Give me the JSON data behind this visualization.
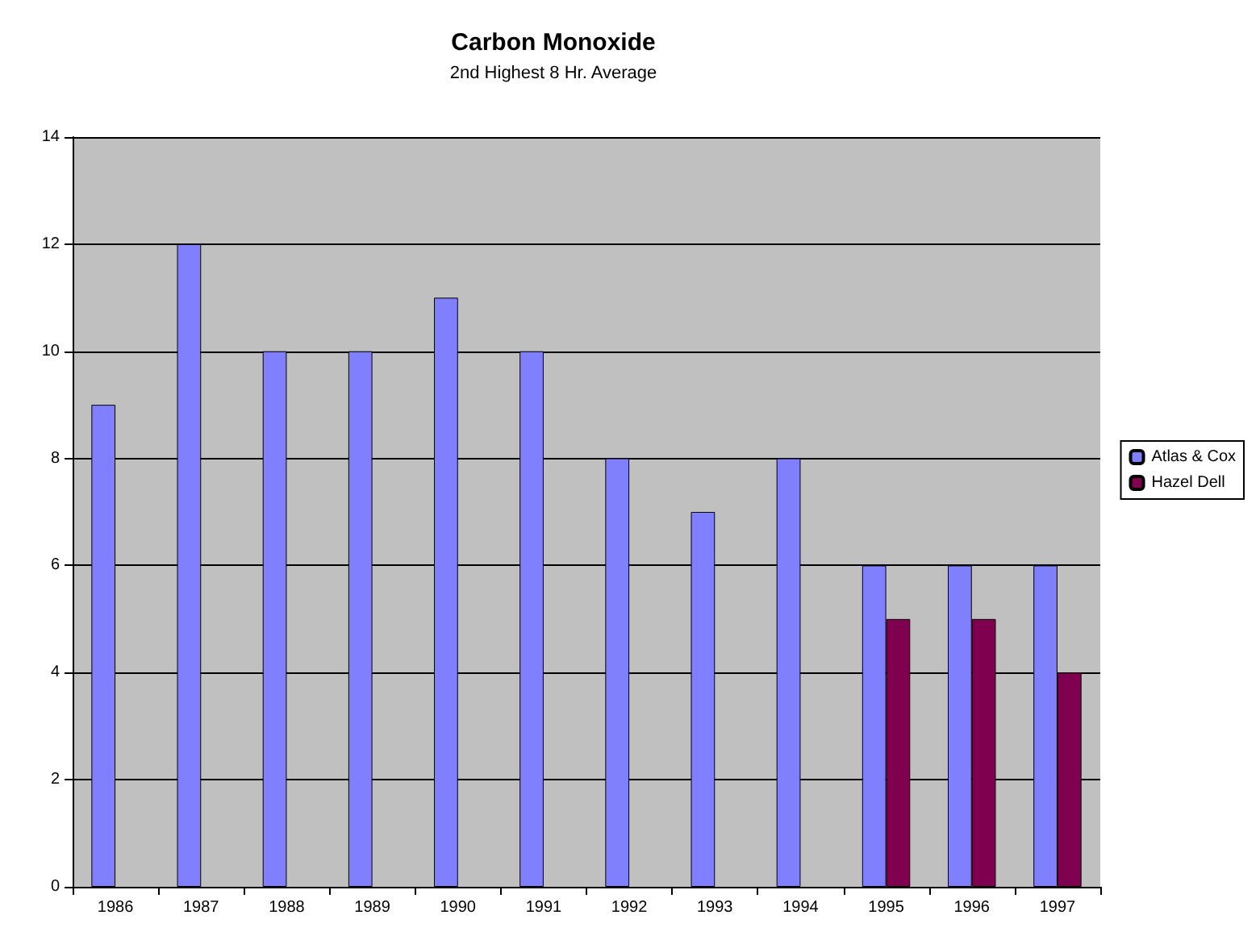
{
  "chart_data": {
    "type": "bar",
    "title": "Carbon Monoxide",
    "subtitle": "2nd Highest 8 Hr. Average",
    "categories": [
      "1986",
      "1987",
      "1988",
      "1989",
      "1990",
      "1991",
      "1992",
      "1993",
      "1994",
      "1995",
      "1996",
      "1997"
    ],
    "series": [
      {
        "name": "Atlas & Cox",
        "color": "#8080ff",
        "values": [
          9,
          12,
          10,
          10,
          11,
          10,
          8,
          7,
          8,
          6,
          6,
          6
        ]
      },
      {
        "name": "Hazel Dell",
        "color": "#800050",
        "values": [
          null,
          null,
          null,
          null,
          null,
          null,
          null,
          null,
          null,
          5,
          5,
          4
        ]
      }
    ],
    "ylim": [
      0,
      14
    ],
    "yticks": [
      0,
      2,
      4,
      6,
      8,
      10,
      12,
      14
    ],
    "grid": "y",
    "legend": "right"
  }
}
